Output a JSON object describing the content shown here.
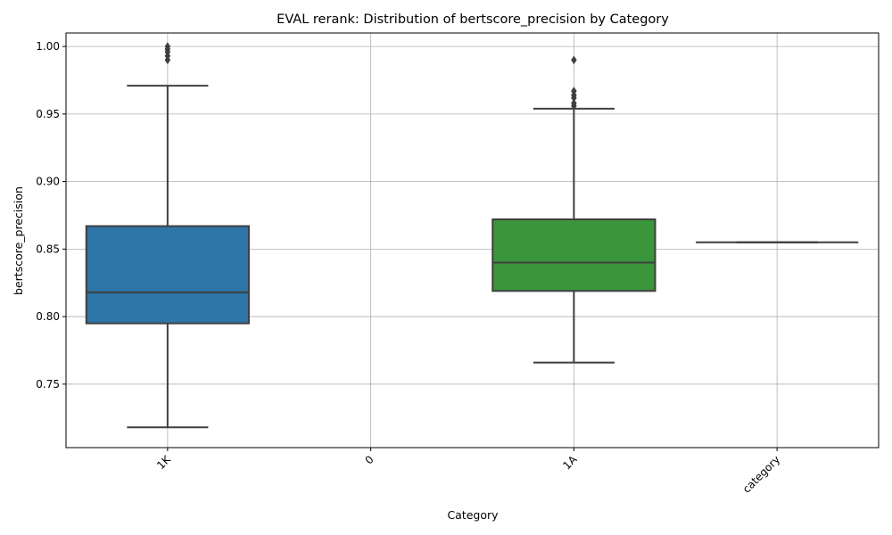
{
  "chart_data": {
    "type": "box",
    "title": "EVAL rerank: Distribution of bertscore_precision by Category",
    "xlabel": "Category",
    "ylabel": "bertscore_precision",
    "categories": [
      "1K",
      "0",
      "1A",
      "category"
    ],
    "ylim": [
      0.703,
      1.01
    ],
    "yticks": [
      0.75,
      0.8,
      0.85,
      0.9,
      0.95,
      1.0
    ],
    "ytick_labels": [
      "0.75",
      "0.80",
      "0.85",
      "0.90",
      "0.95",
      "1.00"
    ],
    "grid": true,
    "boxes": [
      {
        "category": "1K",
        "color": "#2e75a8",
        "whisker_low": 0.718,
        "q1": 0.795,
        "median": 0.818,
        "q3": 0.867,
        "whisker_high": 0.971,
        "outliers": [
          0.99,
          0.993,
          0.996,
          0.998,
          1.0
        ]
      },
      {
        "category": "1A",
        "color": "#3a963a",
        "whisker_low": 0.766,
        "q1": 0.819,
        "median": 0.84,
        "q3": 0.872,
        "whisker_high": 0.954,
        "outliers": [
          0.956,
          0.958,
          0.962,
          0.964,
          0.967,
          0.99
        ]
      },
      {
        "category": "category",
        "color": "#c0392b",
        "whisker_low": 0.855,
        "q1": 0.855,
        "median": 0.855,
        "q3": 0.855,
        "whisker_high": 0.855,
        "outliers": []
      }
    ]
  }
}
